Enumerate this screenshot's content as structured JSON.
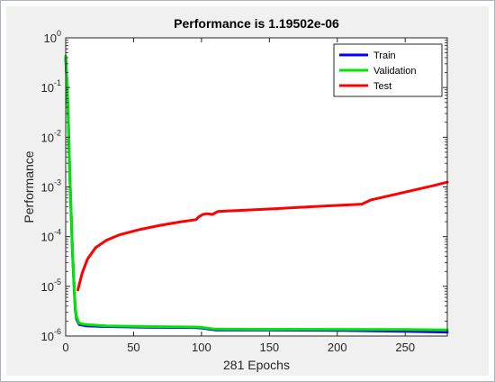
{
  "chart_data": {
    "type": "line",
    "title": "Performance is 1.19502e-06",
    "xlabel": "281 Epochs",
    "ylabel": "Performance",
    "xlim": [
      0,
      281
    ],
    "ylim": [
      1e-06,
      1
    ],
    "yscale": "log",
    "xticks": [
      0,
      50,
      100,
      150,
      200,
      250
    ],
    "xtick_labels": [
      "0",
      "50",
      "100",
      "150",
      "200",
      "250"
    ],
    "yticks": [
      {
        "base": "10",
        "exp": "0",
        "value": 1
      },
      {
        "base": "10",
        "exp": "-1",
        "value": 0.1
      },
      {
        "base": "10",
        "exp": "-2",
        "value": 0.01
      },
      {
        "base": "10",
        "exp": "-3",
        "value": 0.001
      },
      {
        "base": "10",
        "exp": "-4",
        "value": 0.0001
      },
      {
        "base": "10",
        "exp": "-5",
        "value": 1e-05
      },
      {
        "base": "10",
        "exp": "-6",
        "value": 1e-06
      }
    ],
    "grid": false,
    "legend": "top-right",
    "series": [
      {
        "name": "Train",
        "color": "#0000ff",
        "points": [
          [
            0,
            0.4
          ],
          [
            1,
            0.12
          ],
          [
            2,
            0.02
          ],
          [
            3,
            0.0018
          ],
          [
            4,
            0.0003
          ],
          [
            5,
            5e-05
          ],
          [
            6,
            1.2e-05
          ],
          [
            7,
            3.5e-06
          ],
          [
            8,
            2.2e-06
          ],
          [
            10,
            1.7e-06
          ],
          [
            15,
            1.6e-06
          ],
          [
            30,
            1.55e-06
          ],
          [
            60,
            1.5e-06
          ],
          [
            95,
            1.48e-06
          ],
          [
            100,
            1.45e-06
          ],
          [
            110,
            1.33e-06
          ],
          [
            150,
            1.32e-06
          ],
          [
            200,
            1.3e-06
          ],
          [
            250,
            1.25e-06
          ],
          [
            281,
            1.2e-06
          ]
        ]
      },
      {
        "name": "Validation",
        "color": "#00e600",
        "points": [
          [
            0,
            0.43
          ],
          [
            1,
            0.13
          ],
          [
            2,
            0.022
          ],
          [
            3,
            0.002
          ],
          [
            4,
            0.00033
          ],
          [
            5,
            5.5e-05
          ],
          [
            6,
            1.3e-05
          ],
          [
            7,
            3.8e-06
          ],
          [
            8,
            2.4e-06
          ],
          [
            10,
            1.8e-06
          ],
          [
            15,
            1.7e-06
          ],
          [
            30,
            1.6e-06
          ],
          [
            60,
            1.55e-06
          ],
          [
            95,
            1.52e-06
          ],
          [
            100,
            1.5e-06
          ],
          [
            110,
            1.38e-06
          ],
          [
            150,
            1.37e-06
          ],
          [
            200,
            1.36e-06
          ],
          [
            250,
            1.35e-06
          ],
          [
            281,
            1.33e-06
          ]
        ]
      },
      {
        "name": "Test",
        "color": "#ff0000",
        "points": [
          [
            9,
            8.5e-06
          ],
          [
            12,
            1.8e-05
          ],
          [
            16,
            3.5e-05
          ],
          [
            22,
            6e-05
          ],
          [
            30,
            8.5e-05
          ],
          [
            40,
            0.00011
          ],
          [
            55,
            0.00014
          ],
          [
            70,
            0.00017
          ],
          [
            85,
            0.0002
          ],
          [
            96,
            0.00022
          ],
          [
            98,
            0.00025
          ],
          [
            101,
            0.00028
          ],
          [
            104,
            0.00029
          ],
          [
            108,
            0.00028
          ],
          [
            112,
            0.00032
          ],
          [
            120,
            0.00033
          ],
          [
            150,
            0.00036
          ],
          [
            180,
            0.0004
          ],
          [
            210,
            0.00044
          ],
          [
            218,
            0.00045
          ],
          [
            225,
            0.00055
          ],
          [
            240,
            0.00068
          ],
          [
            255,
            0.00085
          ],
          [
            270,
            0.00105
          ],
          [
            281,
            0.00125
          ]
        ]
      }
    ]
  }
}
